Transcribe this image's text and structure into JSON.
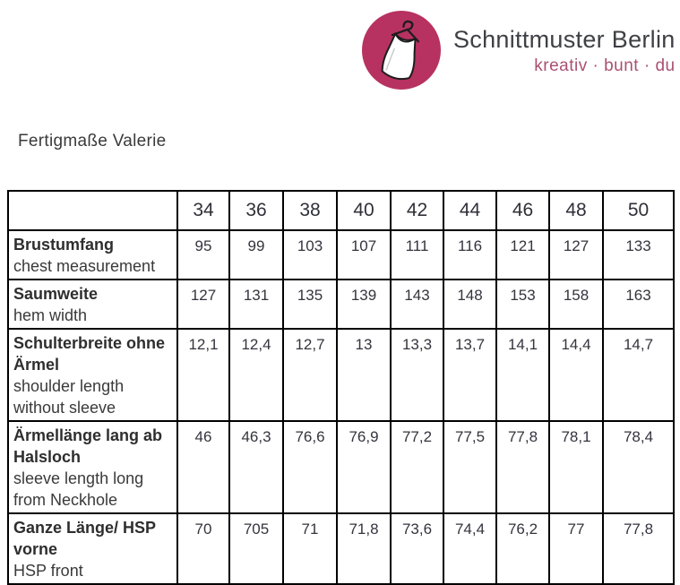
{
  "logo": {
    "brand": "Schnittmuster Berlin",
    "tagline": "kreativ · bunt · du",
    "circle_color": "#b73260",
    "tagline_color": "#aa5071",
    "icon": "dress-on-hanger-icon"
  },
  "page_title": "Fertigmaße Valerie",
  "table": {
    "size_headers": [
      "34",
      "36",
      "38",
      "40",
      "42",
      "44",
      "46",
      "48",
      "50"
    ],
    "rows": [
      {
        "label_de": "Brustumfang",
        "label_en": "chest measurement",
        "values": [
          "95",
          "99",
          "103",
          "107",
          "111",
          "116",
          "121",
          "127",
          "133"
        ]
      },
      {
        "label_de": "Saumweite",
        "label_en": "hem width",
        "values": [
          "127",
          "131",
          "135",
          "139",
          "143",
          "148",
          "153",
          "158",
          "163"
        ]
      },
      {
        "label_de": "Schulterbreite ohne Ärmel",
        "label_en": "shoulder length without sleeve",
        "values": [
          "12,1",
          "12,4",
          "12,7",
          "13",
          "13,3",
          "13,7",
          "14,1",
          "14,4",
          "14,7"
        ]
      },
      {
        "label_de": "Ärmellänge lang ab Halsloch",
        "label_en": "sleeve length long from Neckhole",
        "values": [
          "46",
          "46,3",
          "76,6",
          "76,9",
          "77,2",
          "77,5",
          "77,8",
          "78,1",
          "78,4"
        ]
      },
      {
        "label_de": "Ganze Länge/ HSP vorne",
        "label_en": "HSP front",
        "values": [
          "70",
          "705",
          "71",
          "71,8",
          "73,6",
          "74,4",
          "76,2",
          "77",
          "77,8"
        ]
      }
    ]
  }
}
